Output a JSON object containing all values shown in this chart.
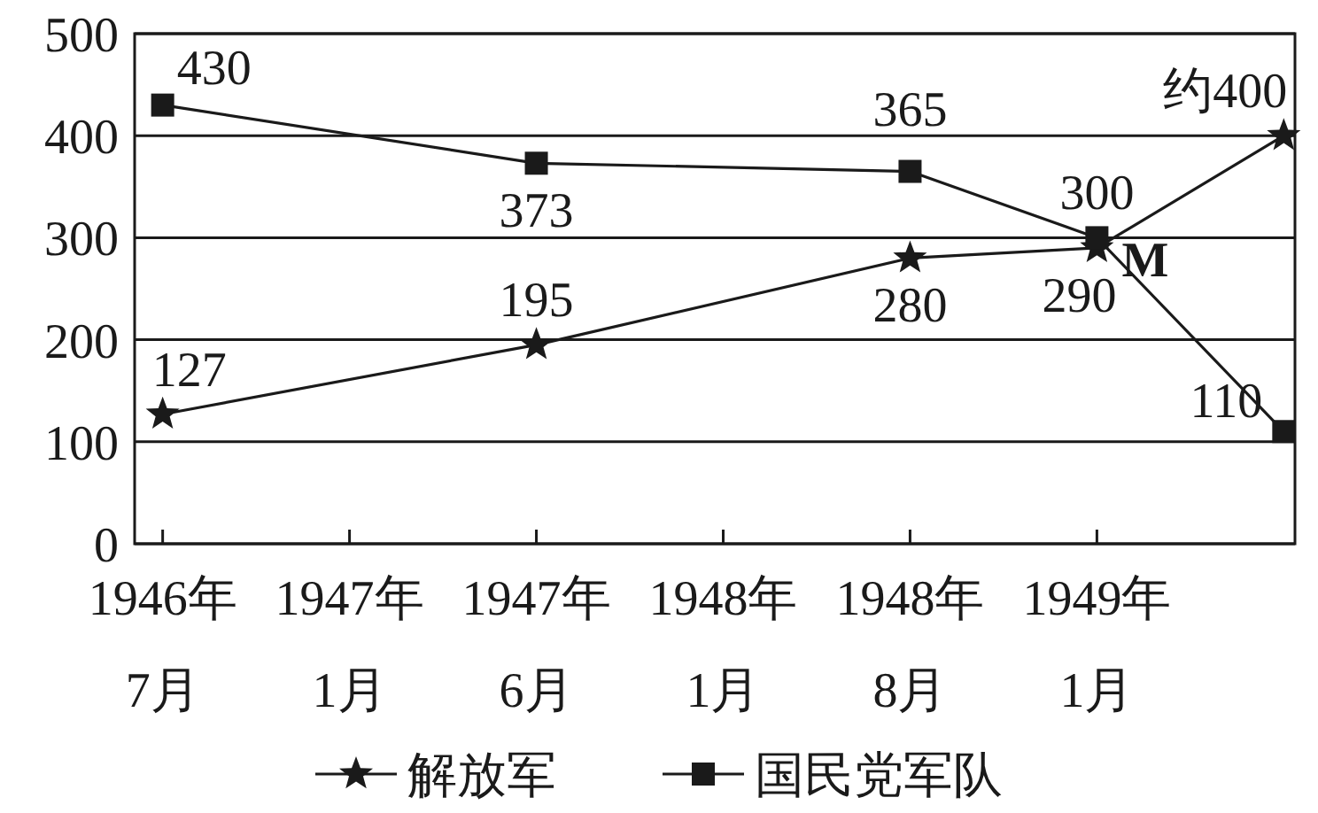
{
  "chart_data": {
    "type": "line",
    "categories": [
      "1946年\n7月",
      "1947年\n1月",
      "1947年\n6月",
      "1948年\n1月",
      "1948年\n8月",
      "1949年\n1月",
      null
    ],
    "series": [
      {
        "name": "解放军",
        "color": "#1a1a1a",
        "marker": "star",
        "values": [
          127,
          null,
          195,
          null,
          280,
          290,
          400
        ],
        "value_labels": [
          "127",
          null,
          "195",
          null,
          "280",
          "290",
          "约400"
        ]
      },
      {
        "name": "国民党军队",
        "color": "#1a1a1a",
        "marker": "square",
        "values": [
          430,
          null,
          373,
          null,
          365,
          300,
          110
        ],
        "value_labels": [
          "430",
          null,
          "373",
          null,
          "365",
          "300",
          "110"
        ]
      }
    ],
    "ylim": [
      0,
      500
    ],
    "yticks": [
      0,
      100,
      200,
      300,
      400,
      500
    ],
    "grid": "y",
    "legend": "bottom",
    "line_style": "solid",
    "annotations": [
      {
        "text": "M",
        "x": "1949年\n1月",
        "y": 300
      }
    ]
  }
}
